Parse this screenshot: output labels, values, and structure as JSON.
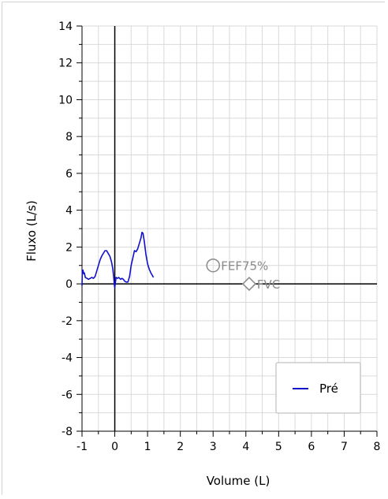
{
  "chart_data": {
    "type": "line",
    "title": "",
    "xlabel": "Volume (L)",
    "ylabel": "Fluxo (L/s)",
    "xlim": [
      -1,
      8
    ],
    "ylim": [
      -8,
      14
    ],
    "x_ticks": [
      -1,
      0,
      1,
      2,
      3,
      4,
      5,
      6,
      7,
      8
    ],
    "y_ticks": [
      -8,
      -6,
      -4,
      -2,
      0,
      2,
      4,
      6,
      8,
      10,
      12,
      14
    ],
    "grid": true,
    "legend_position": "bottom-right",
    "series": [
      {
        "name": "Pré",
        "color": "#1010cc",
        "points": [
          [
            -1.0,
            -0.1
          ],
          [
            -0.99,
            0.7
          ],
          [
            -0.97,
            0.75
          ],
          [
            -0.95,
            0.55
          ],
          [
            -0.93,
            0.6
          ],
          [
            -0.9,
            0.35
          ],
          [
            -0.85,
            0.3
          ],
          [
            -0.8,
            0.25
          ],
          [
            -0.75,
            0.3
          ],
          [
            -0.7,
            0.35
          ],
          [
            -0.65,
            0.3
          ],
          [
            -0.6,
            0.4
          ],
          [
            -0.55,
            0.7
          ],
          [
            -0.5,
            1.0
          ],
          [
            -0.45,
            1.3
          ],
          [
            -0.4,
            1.5
          ],
          [
            -0.35,
            1.65
          ],
          [
            -0.3,
            1.8
          ],
          [
            -0.25,
            1.8
          ],
          [
            -0.2,
            1.65
          ],
          [
            -0.15,
            1.5
          ],
          [
            -0.1,
            1.2
          ],
          [
            -0.06,
            0.8
          ],
          [
            -0.03,
            0.3
          ],
          [
            -0.01,
            -0.1
          ],
          [
            0.0,
            -0.2
          ],
          [
            0.02,
            0.1
          ],
          [
            0.04,
            0.35
          ],
          [
            0.08,
            0.3
          ],
          [
            0.12,
            0.35
          ],
          [
            0.18,
            0.25
          ],
          [
            0.22,
            0.3
          ],
          [
            0.26,
            0.25
          ],
          [
            0.3,
            0.15
          ],
          [
            0.35,
            0.1
          ],
          [
            0.4,
            0.1
          ],
          [
            0.45,
            0.4
          ],
          [
            0.5,
            1.0
          ],
          [
            0.55,
            1.4
          ],
          [
            0.6,
            1.8
          ],
          [
            0.65,
            1.75
          ],
          [
            0.7,
            1.9
          ],
          [
            0.75,
            2.2
          ],
          [
            0.8,
            2.5
          ],
          [
            0.83,
            2.8
          ],
          [
            0.86,
            2.75
          ],
          [
            0.9,
            2.3
          ],
          [
            0.95,
            1.6
          ],
          [
            1.0,
            1.1
          ],
          [
            1.05,
            0.8
          ],
          [
            1.1,
            0.6
          ],
          [
            1.15,
            0.45
          ],
          [
            1.18,
            0.35
          ]
        ]
      }
    ],
    "markers": [
      {
        "label": "FEF75%",
        "x": 3.0,
        "y": 1.0,
        "shape": "circle",
        "color": "#8a8a8a"
      },
      {
        "label": "FVC",
        "x": 4.1,
        "y": 0.0,
        "shape": "diamond",
        "color": "#8a8a8a"
      }
    ],
    "colors": {
      "grid": "#d9d9d9",
      "axis": "#000000",
      "zero_lines": "#000000",
      "legend_border": "#cccccc"
    }
  }
}
